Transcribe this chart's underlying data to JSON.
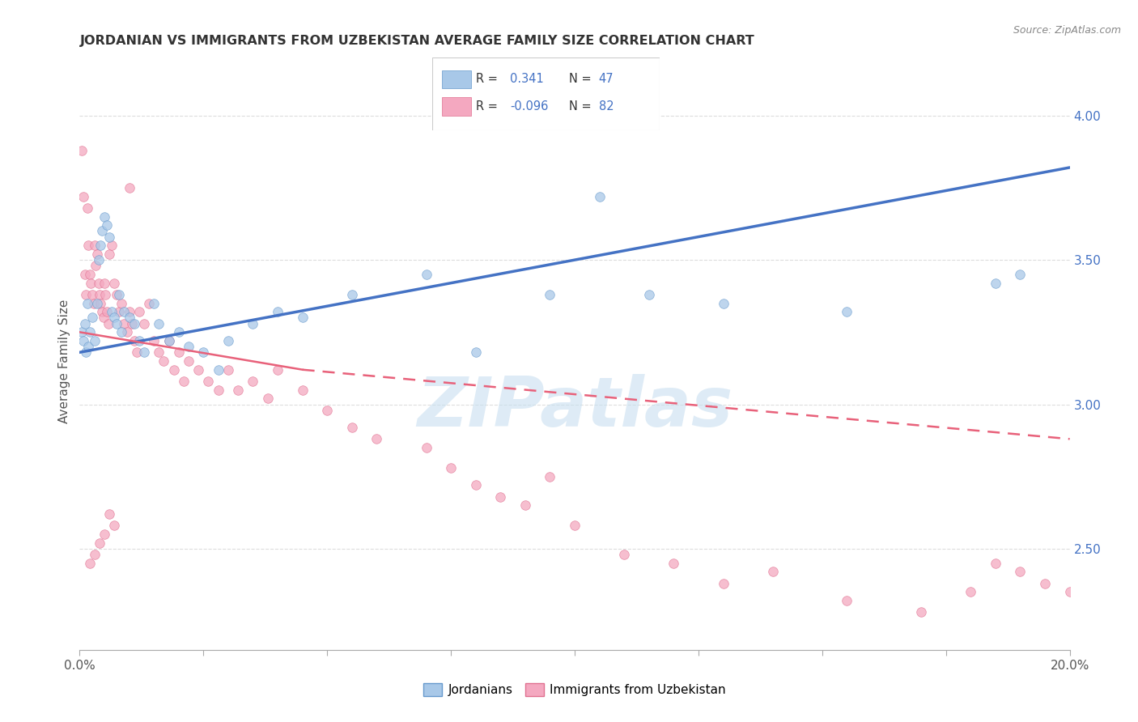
{
  "title": "JORDANIAN VS IMMIGRANTS FROM UZBEKISTAN AVERAGE FAMILY SIZE CORRELATION CHART",
  "source": "Source: ZipAtlas.com",
  "ylabel": "Average Family Size",
  "xlim": [
    0.0,
    20.0
  ],
  "ylim": [
    2.15,
    4.15
  ],
  "xtick_vals": [
    0.0,
    2.5,
    5.0,
    7.5,
    10.0,
    12.5,
    15.0,
    17.5,
    20.0
  ],
  "xtick_labels_show": {
    "0.0": "0.0%",
    "20.0": "20.0%"
  },
  "ylabel_right_ticks": [
    2.5,
    3.0,
    3.5,
    4.0
  ],
  "jordanians": {
    "color": "#a8c8e8",
    "edge_color": "#6699cc",
    "x": [
      0.05,
      0.08,
      0.1,
      0.12,
      0.15,
      0.18,
      0.2,
      0.25,
      0.3,
      0.35,
      0.38,
      0.42,
      0.45,
      0.5,
      0.55,
      0.6,
      0.65,
      0.7,
      0.75,
      0.8,
      0.85,
      0.9,
      1.0,
      1.1,
      1.2,
      1.3,
      1.5,
      1.6,
      1.8,
      2.0,
      2.2,
      2.5,
      2.8,
      3.0,
      3.5,
      4.0,
      4.5,
      5.5,
      7.0,
      8.0,
      9.5,
      10.5,
      11.5,
      13.0,
      15.5,
      18.5,
      19.0
    ],
    "y": [
      3.25,
      3.22,
      3.28,
      3.18,
      3.35,
      3.2,
      3.25,
      3.3,
      3.22,
      3.35,
      3.5,
      3.55,
      3.6,
      3.65,
      3.62,
      3.58,
      3.32,
      3.3,
      3.28,
      3.38,
      3.25,
      3.32,
      3.3,
      3.28,
      3.22,
      3.18,
      3.35,
      3.28,
      3.22,
      3.25,
      3.2,
      3.18,
      3.12,
      3.22,
      3.28,
      3.32,
      3.3,
      3.38,
      3.45,
      3.18,
      3.38,
      3.72,
      3.38,
      3.35,
      3.32,
      3.42,
      3.45
    ]
  },
  "uzbekistan": {
    "color": "#f4a8c0",
    "edge_color": "#e07090",
    "x": [
      0.05,
      0.08,
      0.1,
      0.12,
      0.15,
      0.18,
      0.2,
      0.22,
      0.25,
      0.28,
      0.3,
      0.32,
      0.35,
      0.38,
      0.4,
      0.42,
      0.45,
      0.48,
      0.5,
      0.52,
      0.55,
      0.58,
      0.6,
      0.65,
      0.7,
      0.75,
      0.8,
      0.85,
      0.9,
      0.95,
      1.0,
      1.05,
      1.1,
      1.15,
      1.2,
      1.3,
      1.4,
      1.5,
      1.6,
      1.7,
      1.8,
      1.9,
      2.0,
      2.1,
      2.2,
      2.4,
      2.6,
      2.8,
      3.0,
      3.2,
      3.5,
      3.8,
      4.0,
      4.5,
      5.0,
      5.5,
      6.0,
      7.0,
      7.5,
      8.0,
      8.5,
      9.0,
      9.5,
      10.0,
      11.0,
      12.0,
      13.0,
      14.0,
      15.5,
      17.0,
      18.0,
      18.5,
      19.0,
      19.5,
      20.0,
      1.0,
      0.7,
      0.6,
      0.5,
      0.4,
      0.3,
      0.2
    ],
    "y": [
      3.88,
      3.72,
      3.45,
      3.38,
      3.68,
      3.55,
      3.45,
      3.42,
      3.38,
      3.35,
      3.55,
      3.48,
      3.52,
      3.42,
      3.38,
      3.35,
      3.32,
      3.3,
      3.42,
      3.38,
      3.32,
      3.28,
      3.52,
      3.55,
      3.42,
      3.38,
      3.32,
      3.35,
      3.28,
      3.25,
      3.32,
      3.28,
      3.22,
      3.18,
      3.32,
      3.28,
      3.35,
      3.22,
      3.18,
      3.15,
      3.22,
      3.12,
      3.18,
      3.08,
      3.15,
      3.12,
      3.08,
      3.05,
      3.12,
      3.05,
      3.08,
      3.02,
      3.12,
      3.05,
      2.98,
      2.92,
      2.88,
      2.85,
      2.78,
      2.72,
      2.68,
      2.65,
      2.75,
      2.58,
      2.48,
      2.45,
      2.38,
      2.42,
      2.32,
      2.28,
      2.35,
      2.45,
      2.42,
      2.38,
      2.35,
      3.75,
      2.58,
      2.62,
      2.55,
      2.52,
      2.48,
      2.45
    ]
  },
  "blue_line": {
    "x0": 0.0,
    "y0": 3.18,
    "x1": 20.0,
    "y1": 3.82
  },
  "pink_solid_line": {
    "x0": 0.0,
    "y0": 3.25,
    "x1": 4.5,
    "y1": 3.12
  },
  "pink_dash_line": {
    "x0": 4.5,
    "y0": 3.12,
    "x1": 20.0,
    "y1": 2.88
  },
  "watermark_text": "ZIPatlas",
  "watermark_color": "#c8dff0",
  "title_color": "#333333",
  "blue_color": "#4472c4",
  "pink_color": "#e8617a",
  "grid_color": "#dddddd",
  "right_axis_color": "#4472c4",
  "marker_size": 70,
  "marker_alpha": 0.75
}
